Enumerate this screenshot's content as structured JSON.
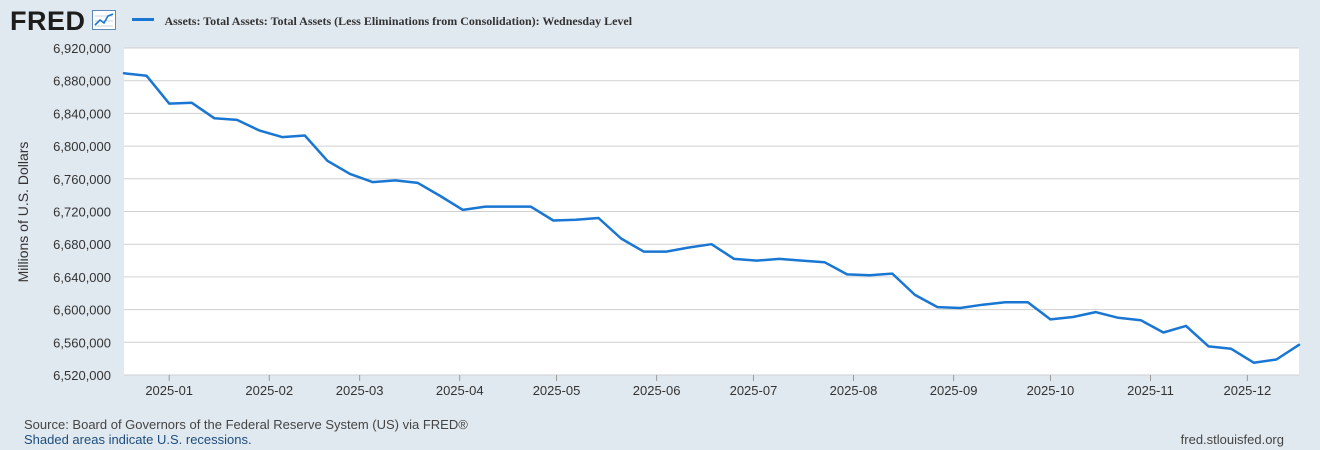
{
  "header": {
    "logo_text": "FRED",
    "legend_label": "Assets: Total Assets: Total Assets (Less Eliminations from Consolidation): Wednesday Level"
  },
  "footer": {
    "source_text": "Source: Board of Governors of the Federal Reserve System (US) via FRED®",
    "recession_text": "Shaded areas indicate U.S. recessions.",
    "site_text": "fred.stlouisfed.org"
  },
  "colors": {
    "line": "#1976d2",
    "plot_bg": "#ffffff",
    "page_bg": "#e1e9f0",
    "grid": "#d0d0d0"
  },
  "chart_data": {
    "type": "line",
    "title": "Assets: Total Assets: Total Assets (Less Eliminations from Consolidation): Wednesday Level",
    "xlabel": "",
    "ylabel": "Millions of U.S. Dollars",
    "ylim": [
      6520000,
      6920000
    ],
    "yticks": [
      6520000,
      6560000,
      6600000,
      6640000,
      6680000,
      6720000,
      6760000,
      6800000,
      6840000,
      6880000,
      6920000
    ],
    "ytick_labels": [
      "6,520,000",
      "6,560,000",
      "6,600,000",
      "6,640,000",
      "6,680,000",
      "6,720,000",
      "6,760,000",
      "6,800,000",
      "6,840,000",
      "6,880,000",
      "6,920,000"
    ],
    "xlim": [
      "2024-12-18",
      "2025-12-17"
    ],
    "xticks": [
      "2025-01-01",
      "2025-02-01",
      "2025-03-01",
      "2025-04-01",
      "2025-05-01",
      "2025-06-01",
      "2025-07-01",
      "2025-08-01",
      "2025-09-01",
      "2025-10-01",
      "2025-11-01",
      "2025-12-01"
    ],
    "xtick_labels": [
      "2025-01",
      "2025-02",
      "2025-03",
      "2025-04",
      "2025-05",
      "2025-06",
      "2025-07",
      "2025-08",
      "2025-09",
      "2025-10",
      "2025-11",
      "2025-12"
    ],
    "grid": true,
    "series": [
      {
        "name": "Assets: Total Assets: Total Assets (Less Eliminations from Consolidation): Wednesday Level",
        "x": [
          "2024-12-18",
          "2024-12-25",
          "2025-01-01",
          "2025-01-08",
          "2025-01-15",
          "2025-01-22",
          "2025-01-29",
          "2025-02-05",
          "2025-02-12",
          "2025-02-19",
          "2025-02-26",
          "2025-03-05",
          "2025-03-12",
          "2025-03-19",
          "2025-03-26",
          "2025-04-02",
          "2025-04-09",
          "2025-04-16",
          "2025-04-23",
          "2025-04-30",
          "2025-05-07",
          "2025-05-14",
          "2025-05-21",
          "2025-05-28",
          "2025-06-04",
          "2025-06-11",
          "2025-06-18",
          "2025-06-25",
          "2025-07-02",
          "2025-07-09",
          "2025-07-16",
          "2025-07-23",
          "2025-07-30",
          "2025-08-06",
          "2025-08-13",
          "2025-08-20",
          "2025-08-27",
          "2025-09-03",
          "2025-09-10",
          "2025-09-17",
          "2025-09-24",
          "2025-10-01",
          "2025-10-08",
          "2025-10-15",
          "2025-10-22",
          "2025-10-29",
          "2025-11-05",
          "2025-11-12",
          "2025-11-19",
          "2025-11-26",
          "2025-12-03",
          "2025-12-10",
          "2025-12-17"
        ],
        "values": [
          6889000,
          6886000,
          6852000,
          6853000,
          6834000,
          6832000,
          6819000,
          6811000,
          6813000,
          6782000,
          6766000,
          6756000,
          6758000,
          6755000,
          6739000,
          6722000,
          6726000,
          6726000,
          6726000,
          6709000,
          6710000,
          6712000,
          6687000,
          6671000,
          6671000,
          6676000,
          6680000,
          6662000,
          6660000,
          6662000,
          6660000,
          6658000,
          6643000,
          6642000,
          6644000,
          6618000,
          6603000,
          6602000,
          6606000,
          6609000,
          6609000,
          6588000,
          6591000,
          6597000,
          6590000,
          6587000,
          6572000,
          6580000,
          6555000,
          6552000,
          6535000,
          6539000,
          6557000
        ]
      }
    ]
  }
}
